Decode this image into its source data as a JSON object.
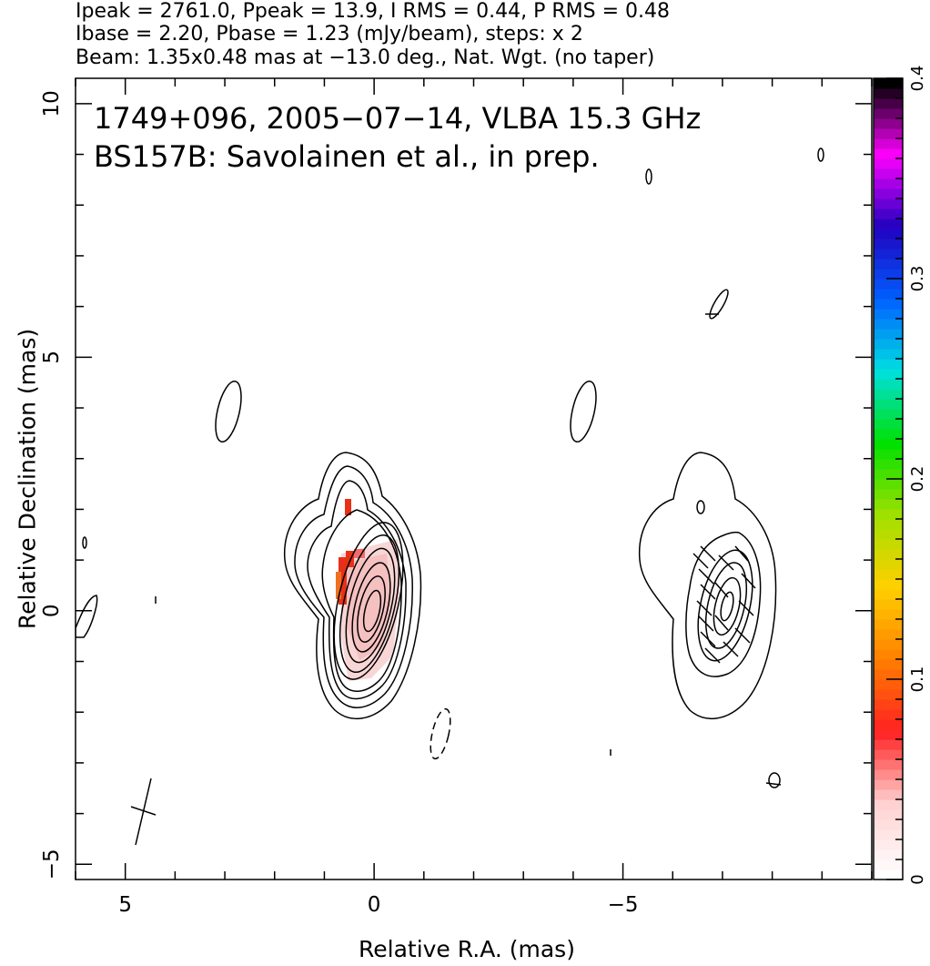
{
  "header": {
    "line1": "Ipeak = 2761.0, Ppeak = 13.9, I RMS = 0.44, P RMS = 0.48",
    "line2": "Ibase = 2.20, Pbase = 1.23 (mJy/beam), steps: x 2",
    "line3": "Beam: 1.35x0.48 mas at −13.0 deg., Nat. Wgt. (no taper)"
  },
  "chart_data": {
    "type": "heatmap",
    "title": "1749+096, 2005−07−14, VLBA 15.3 GHz",
    "subtitle": "BS157B: Savolainen et al., in prep.",
    "xlabel": "Relative R.A. (mas)",
    "ylabel": "Relative Declination (mas)",
    "xlim": [
      6.0,
      -10.0
    ],
    "ylim": [
      -5.3,
      10.5
    ],
    "x_ticks": [
      {
        "value": 5,
        "label": "5"
      },
      {
        "value": 0,
        "label": "0"
      },
      {
        "value": -5,
        "label": "−5"
      }
    ],
    "y_ticks": [
      {
        "value": 10,
        "label": "10"
      },
      {
        "value": 5,
        "label": "5"
      },
      {
        "value": 0,
        "label": "0"
      },
      {
        "value": -5,
        "label": "−5"
      }
    ],
    "colorbar": {
      "range": [
        0,
        0.4
      ],
      "ticks": [
        {
          "value": 0,
          "label": "0"
        },
        {
          "value": 0.1,
          "label": "0.1"
        },
        {
          "value": 0.2,
          "label": "0.2"
        },
        {
          "value": 0.3,
          "label": "0.3"
        },
        {
          "value": 0.4,
          "label": "0.4"
        }
      ],
      "colors": [
        "#ffffff",
        "#ffd0d0",
        "#ff2020",
        "#ff8000",
        "#ffd000",
        "#a0e000",
        "#00e000",
        "#00e0e0",
        "#0060ff",
        "#2000c0",
        "#ff00ff",
        "#000000"
      ]
    },
    "contour_sources": [
      {
        "name": "main",
        "x": 0.0,
        "y": 0.0
      },
      {
        "name": "ghost",
        "x": -6.9,
        "y": 0.0
      }
    ],
    "beam": {
      "x": 4.6,
      "y": -3.9,
      "major": 1.35,
      "minor": 0.48,
      "pa": -13.0
    },
    "colors": {
      "contour": "#000000",
      "pol": "#f06060"
    }
  }
}
